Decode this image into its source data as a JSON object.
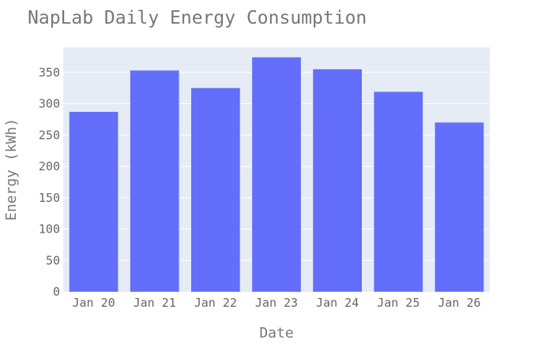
{
  "chart_data": {
    "type": "bar",
    "title": "NapLab Daily Energy Consumption",
    "xlabel": "Date",
    "ylabel": "Energy (kWh)",
    "categories": [
      "Jan 20",
      "Jan 21",
      "Jan 22",
      "Jan 23",
      "Jan 24",
      "Jan 25",
      "Jan 26"
    ],
    "values": [
      287,
      353,
      325,
      374,
      355,
      319,
      270
    ],
    "ylim": [
      0,
      390
    ],
    "yticks": [
      0,
      50,
      100,
      150,
      200,
      250,
      300,
      350
    ],
    "grid": true,
    "legend": "none",
    "colors": {
      "bar": "#636efa",
      "plot_background": "#e5ecf6",
      "grid": "#ffffff"
    }
  }
}
